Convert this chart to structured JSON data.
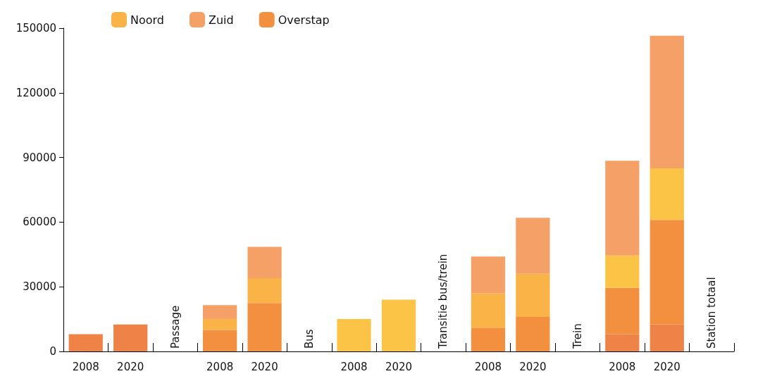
{
  "chart_data": {
    "type": "bar",
    "stacked": true,
    "legend": "top left",
    "grid": false,
    "categories": [
      "2008",
      "2020",
      "Passage",
      "2008",
      "2020",
      "Bus",
      "2008",
      "2020",
      "Transitie bus/trein",
      "2008",
      "2020",
      "Trein",
      "2008",
      "2020",
      "Station totaal"
    ],
    "series": [
      {
        "color": "#ef8347",
        "values": [
          8000,
          12500,
          null,
          null,
          null,
          null,
          null,
          null,
          null,
          null,
          null,
          null,
          8000,
          12500,
          null
        ]
      },
      {
        "name": "Overstap",
        "color": "#f2903f",
        "values": [
          null,
          null,
          null,
          10000,
          22500,
          null,
          null,
          null,
          null,
          11000,
          16000,
          null,
          21500,
          48500,
          null
        ]
      },
      {
        "name": "Noord",
        "color": "#f9b347",
        "values": [
          null,
          null,
          null,
          5000,
          11500,
          null,
          null,
          null,
          null,
          16000,
          20000,
          null,
          null,
          null,
          null
        ]
      },
      {
        "color": "#fcc447",
        "values": [
          null,
          null,
          null,
          null,
          null,
          null,
          15000,
          24000,
          null,
          null,
          null,
          null,
          15000,
          24000,
          null
        ]
      },
      {
        "name": "Zuid",
        "color": "#f5a066",
        "values": [
          null,
          null,
          null,
          6500,
          14500,
          null,
          null,
          null,
          null,
          17000,
          26000,
          null,
          44000,
          61500,
          null
        ]
      }
    ],
    "ylim": [
      0,
      150000
    ],
    "yticks": [
      0,
      30000,
      60000,
      90000,
      120000,
      150000
    ]
  }
}
